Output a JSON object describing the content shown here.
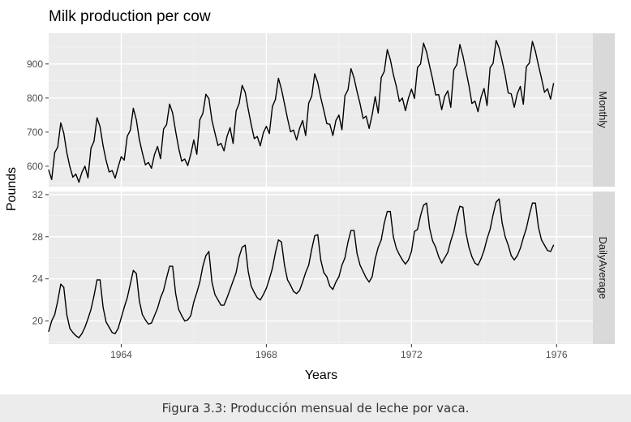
{
  "chart_data": {
    "type": "line",
    "title": "Milk production per cow",
    "xlabel": "Years",
    "ylabel": "Pounds",
    "x_start": "1962-01",
    "x_end": "1975-12",
    "x_frequency": "monthly",
    "xlim": [
      1962,
      1977
    ],
    "xticks": [
      "1964",
      "1968",
      "1972",
      "1976"
    ],
    "grid": true,
    "panels": [
      {
        "strip": "Monthly",
        "ylim": [
          540,
          990
        ],
        "yticks": [
          "600",
          "700",
          "800",
          "900"
        ],
        "values": [
          589,
          561,
          640,
          656,
          727,
          697,
          640,
          599,
          568,
          577,
          553,
          582,
          600,
          566,
          653,
          673,
          742,
          716,
          660,
          617,
          583,
          587,
          565,
          598,
          628,
          618,
          688,
          705,
          770,
          736,
          678,
          639,
          604,
          611,
          594,
          634,
          658,
          622,
          709,
          722,
          782,
          756,
          702,
          653,
          615,
          621,
          602,
          635,
          677,
          635,
          736,
          755,
          811,
          798,
          735,
          697,
          661,
          667,
          645,
          688,
          713,
          667,
          762,
          784,
          837,
          817,
          767,
          722,
          681,
          687,
          660,
          698,
          717,
          696,
          775,
          796,
          858,
          826,
          783,
          740,
          701,
          706,
          677,
          711,
          734,
          690,
          785,
          805,
          871,
          845,
          801,
          764,
          725,
          723,
          690,
          734,
          750,
          707,
          807,
          824,
          886,
          859,
          819,
          783,
          740,
          747,
          711,
          751,
          804,
          756,
          860,
          878,
          942,
          913,
          869,
          834,
          790,
          800,
          763,
          800,
          826,
          799,
          890,
          900,
          961,
          935,
          894,
          855,
          809,
          810,
          766,
          805,
          821,
          773,
          883,
          898,
          957,
          924,
          881,
          837,
          784,
          791,
          760,
          802,
          828,
          778,
          889,
          902,
          969,
          947,
          908,
          867,
          815,
          812,
          773,
          813,
          834,
          782,
          892,
          903,
          966,
          937,
          896,
          858,
          817,
          827,
          797,
          843
        ]
      },
      {
        "strip": "DailyAverage",
        "ylim": [
          17.8,
          32.3
        ],
        "yticks": [
          "20",
          "24",
          "28",
          "32"
        ],
        "values": [
          19.0,
          20.0,
          20.6,
          21.9,
          23.5,
          23.2,
          20.6,
          19.3,
          18.9,
          18.6,
          18.4,
          18.8,
          19.4,
          20.2,
          21.1,
          22.4,
          23.9,
          23.9,
          21.3,
          19.9,
          19.4,
          18.9,
          18.8,
          19.3,
          20.3,
          21.3,
          22.2,
          23.5,
          24.8,
          24.5,
          21.9,
          20.6,
          20.1,
          19.7,
          19.8,
          20.5,
          21.2,
          22.2,
          22.9,
          24.1,
          25.2,
          25.2,
          22.6,
          21.1,
          20.5,
          20.0,
          20.1,
          20.5,
          21.8,
          22.7,
          23.7,
          25.2,
          26.2,
          26.6,
          23.7,
          22.5,
          22.0,
          21.5,
          21.5,
          22.2,
          23.0,
          23.8,
          24.6,
          26.1,
          27.0,
          27.2,
          24.7,
          23.3,
          22.7,
          22.2,
          22.0,
          22.5,
          23.1,
          24.0,
          25.0,
          26.5,
          27.7,
          27.5,
          25.3,
          23.9,
          23.4,
          22.8,
          22.6,
          22.9,
          23.7,
          24.6,
          25.3,
          26.8,
          28.1,
          28.2,
          25.8,
          24.6,
          24.2,
          23.3,
          23.0,
          23.7,
          24.2,
          25.3,
          26.0,
          27.5,
          28.6,
          28.6,
          26.4,
          25.3,
          24.7,
          24.1,
          23.7,
          24.2,
          25.9,
          27.0,
          27.7,
          29.3,
          30.4,
          30.4,
          28.0,
          26.9,
          26.3,
          25.8,
          25.4,
          25.8,
          26.6,
          28.5,
          28.7,
          30.0,
          31.0,
          31.2,
          28.8,
          27.6,
          27.0,
          26.1,
          25.5,
          26.0,
          26.5,
          27.6,
          28.5,
          29.9,
          30.9,
          30.8,
          28.4,
          27.0,
          26.1,
          25.5,
          25.3,
          25.9,
          26.7,
          27.8,
          28.7,
          30.1,
          31.3,
          31.6,
          29.3,
          28.0,
          27.2,
          26.2,
          25.8,
          26.2,
          26.9,
          27.9,
          28.8,
          30.1,
          31.2,
          31.2,
          28.9,
          27.7,
          27.2,
          26.7,
          26.6,
          27.2
        ]
      }
    ]
  },
  "caption": "Figura 3.3: Producción mensual de leche por vaca."
}
